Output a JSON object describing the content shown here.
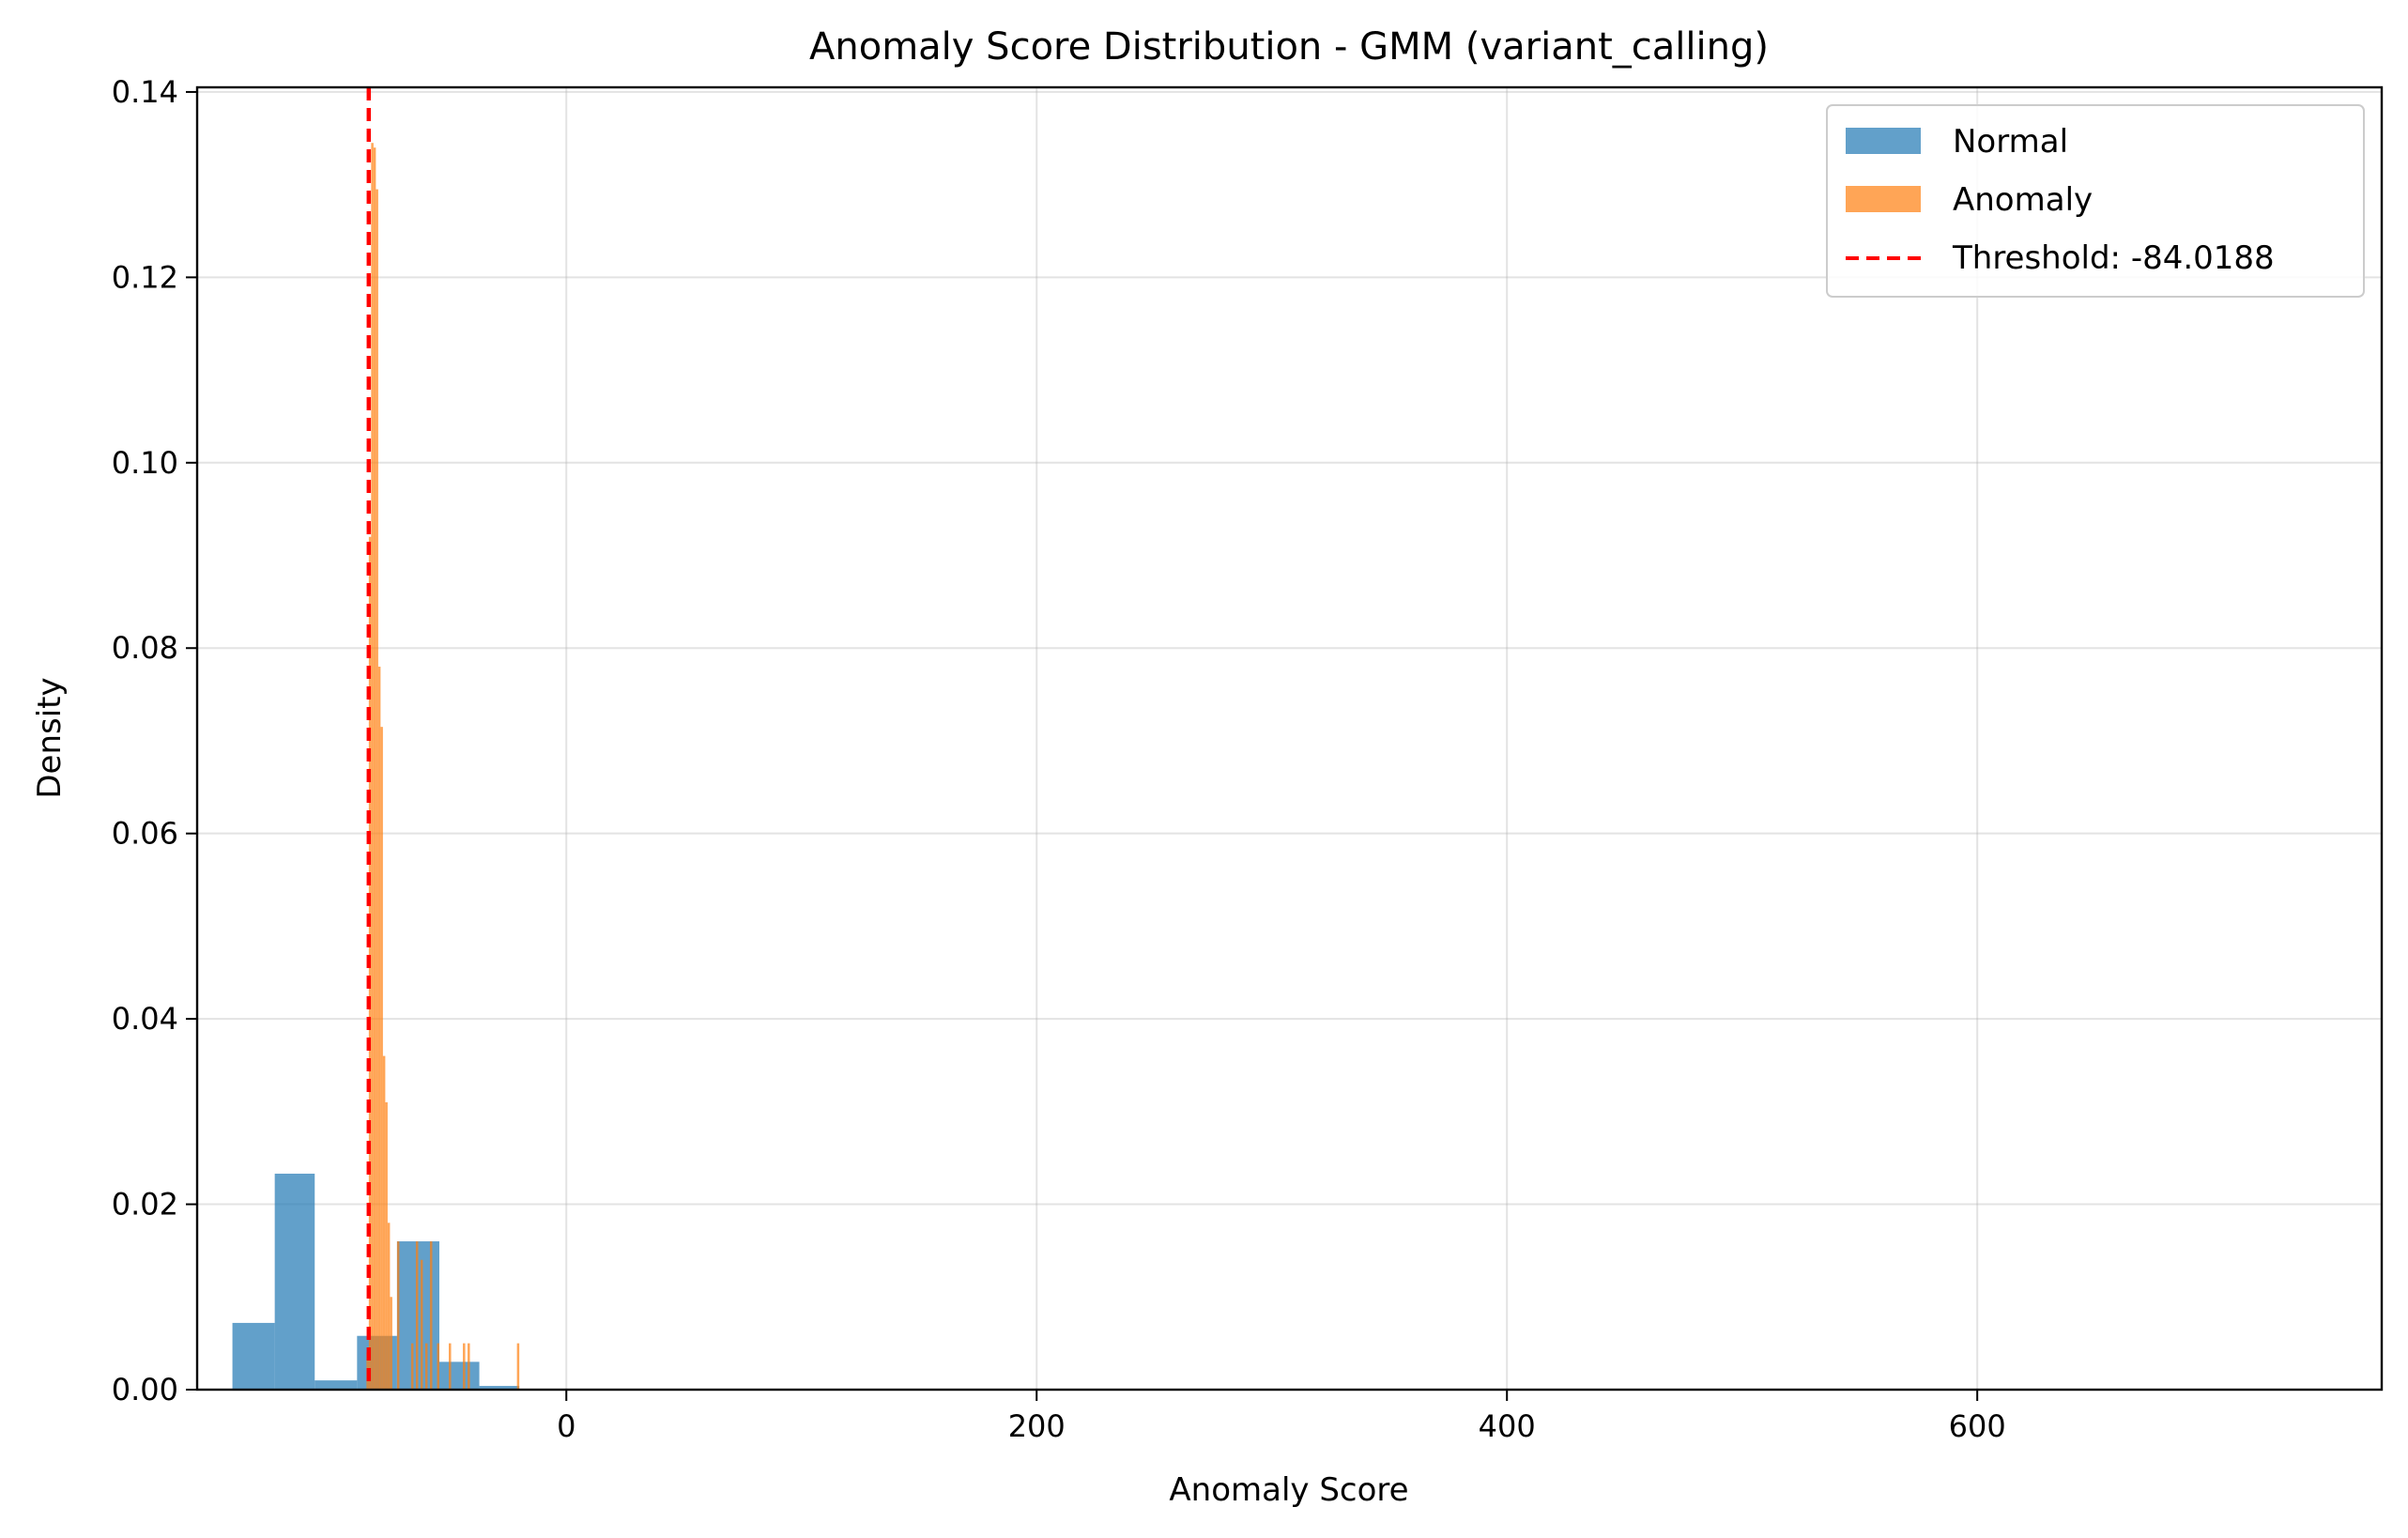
{
  "chart_data": {
    "type": "histogram",
    "title": "Anomaly Score Distribution - GMM (variant_calling)",
    "xlabel": "Anomaly Score",
    "ylabel": "Density",
    "xlim": [
      -157,
      772
    ],
    "ylim": [
      0,
      0.1405
    ],
    "xticks": [
      0,
      200,
      400,
      600
    ],
    "xtick_labels": [
      "0",
      "200",
      "400",
      "600"
    ],
    "yticks": [
      0,
      0.02,
      0.04,
      0.06,
      0.08,
      0.1,
      0.12,
      0.14
    ],
    "ytick_labels": [
      "0.00",
      "0.02",
      "0.04",
      "0.06",
      "0.08",
      "0.10",
      "0.12",
      "0.14"
    ],
    "grid": true,
    "legend_position": "top-right",
    "series": [
      {
        "name": "Normal",
        "color": "#1f77b4",
        "bins": [
          {
            "x0": -142,
            "x1": -124,
            "y": 0.0072
          },
          {
            "x0": -124,
            "x1": -107,
            "y": 0.0233
          },
          {
            "x0": -107,
            "x1": -89,
            "y": 0.001
          },
          {
            "x0": -89,
            "x1": -72,
            "y": 0.0058
          },
          {
            "x0": -72,
            "x1": -54,
            "y": 0.016
          },
          {
            "x0": -54,
            "x1": -37,
            "y": 0.003
          },
          {
            "x0": -37,
            "x1": -20,
            "y": 0.0004
          }
        ]
      },
      {
        "name": "Anomaly",
        "color": "#ff7f0e",
        "bins": [
          {
            "x0": -85,
            "x1": -84,
            "y": 0.004
          },
          {
            "x0": -84,
            "x1": -83,
            "y": 0.092
          },
          {
            "x0": -83,
            "x1": -82,
            "y": 0.1345
          },
          {
            "x0": -82,
            "x1": -81,
            "y": 0.134
          },
          {
            "x0": -81,
            "x1": -80,
            "y": 0.1295
          },
          {
            "x0": -80,
            "x1": -79,
            "y": 0.078
          },
          {
            "x0": -79,
            "x1": -78,
            "y": 0.0715
          },
          {
            "x0": -78,
            "x1": -77,
            "y": 0.036
          },
          {
            "x0": -77,
            "x1": -76,
            "y": 0.031
          },
          {
            "x0": -76,
            "x1": -75,
            "y": 0.018
          },
          {
            "x0": -75,
            "x1": -74,
            "y": 0.01
          },
          {
            "x0": -72,
            "x1": -71,
            "y": 0.016
          },
          {
            "x0": -66,
            "x1": -65,
            "y": 0.005
          },
          {
            "x0": -64,
            "x1": -63,
            "y": 0.016
          },
          {
            "x0": -62,
            "x1": -61,
            "y": 0.014
          },
          {
            "x0": -60,
            "x1": -59,
            "y": 0.005
          },
          {
            "x0": -58,
            "x1": -57,
            "y": 0.016
          },
          {
            "x0": -55,
            "x1": -54,
            "y": 0.005
          },
          {
            "x0": -50,
            "x1": -49,
            "y": 0.005
          },
          {
            "x0": -44,
            "x1": -43,
            "y": 0.005
          },
          {
            "x0": -42,
            "x1": -41,
            "y": 0.005
          },
          {
            "x0": -21,
            "x1": -20,
            "y": 0.005
          }
        ]
      }
    ],
    "threshold": {
      "name": "Threshold: -84.0188",
      "value": -84.0188,
      "color": "#ff0000",
      "style": "dashed"
    }
  }
}
